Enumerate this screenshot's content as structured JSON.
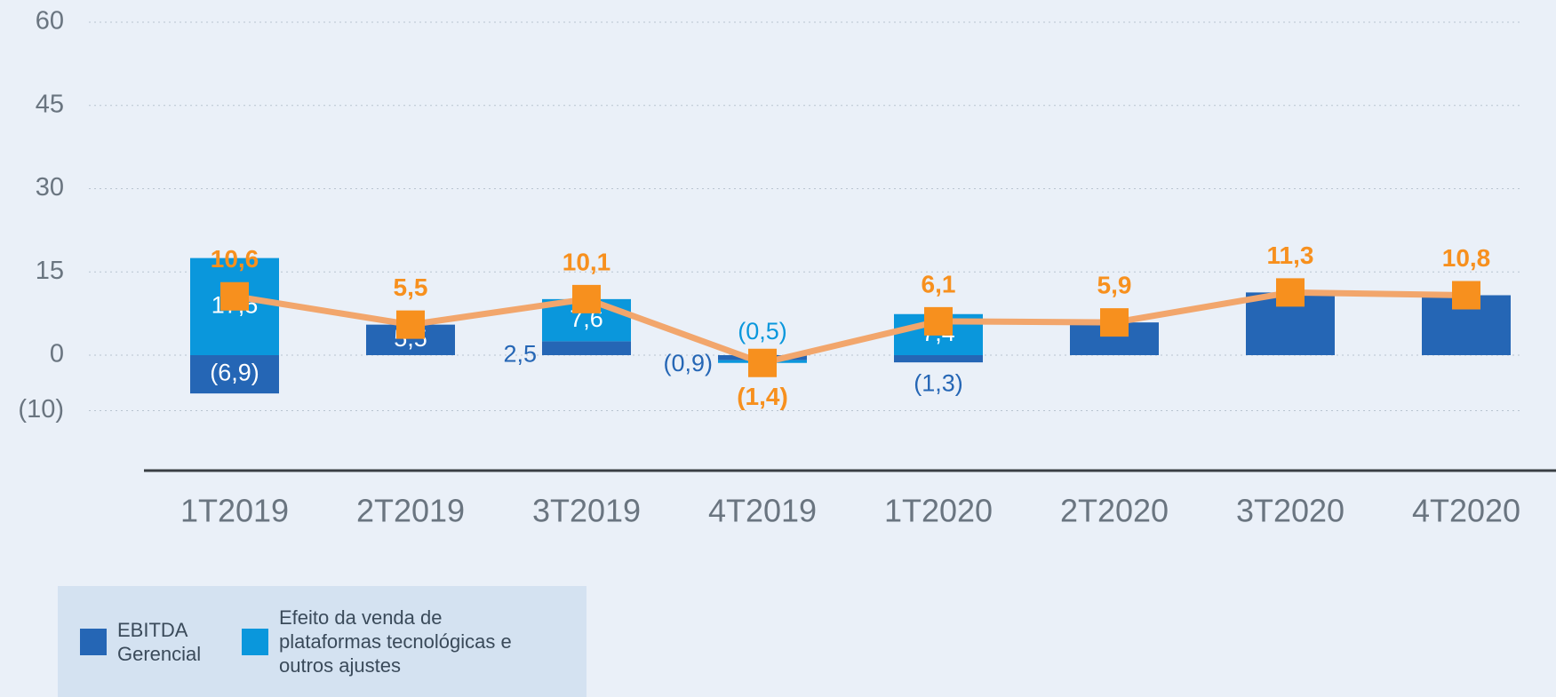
{
  "chart_data": {
    "type": "bar",
    "categories": [
      "1T2019",
      "2T2019",
      "3T2019",
      "4T2019",
      "1T2020",
      "2T2020",
      "3T2020",
      "4T2020"
    ],
    "series": [
      {
        "name": "EBITDA Gerencial",
        "color": "#2566b5",
        "values": [
          -6.9,
          5.5,
          2.5,
          -0.9,
          -1.3,
          5.9,
          11.3,
          10.8
        ],
        "value_labels": [
          "(6,9)",
          "5,5",
          "2,5",
          "(0,9)",
          "(1,3)",
          null,
          null,
          null
        ]
      },
      {
        "name": "Efeito da venda de plataformas tecnológicas e outros ajustes",
        "color": "#0a97dc",
        "values": [
          17.5,
          null,
          7.6,
          -0.5,
          7.4,
          null,
          null,
          null
        ],
        "value_labels": [
          "17,5",
          null,
          "7,6",
          "(0,5)",
          "7,4",
          null,
          null,
          null
        ]
      },
      {
        "type": "line",
        "color": "#f7901e",
        "line_color": "#f2a66c",
        "values": [
          10.6,
          5.5,
          10.1,
          -1.4,
          6.1,
          5.9,
          11.3,
          10.8
        ],
        "value_labels": [
          "10,6",
          "5,5",
          "10,1",
          "(1,4)",
          "6,1",
          "5,9",
          "11,3",
          "10,8"
        ]
      }
    ],
    "stacked": true,
    "ylim": [
      -20,
      60
    ],
    "yticks": [
      {
        "value": -10,
        "label": "(10)"
      },
      0,
      15,
      30,
      45,
      60
    ],
    "grid": true
  }
}
